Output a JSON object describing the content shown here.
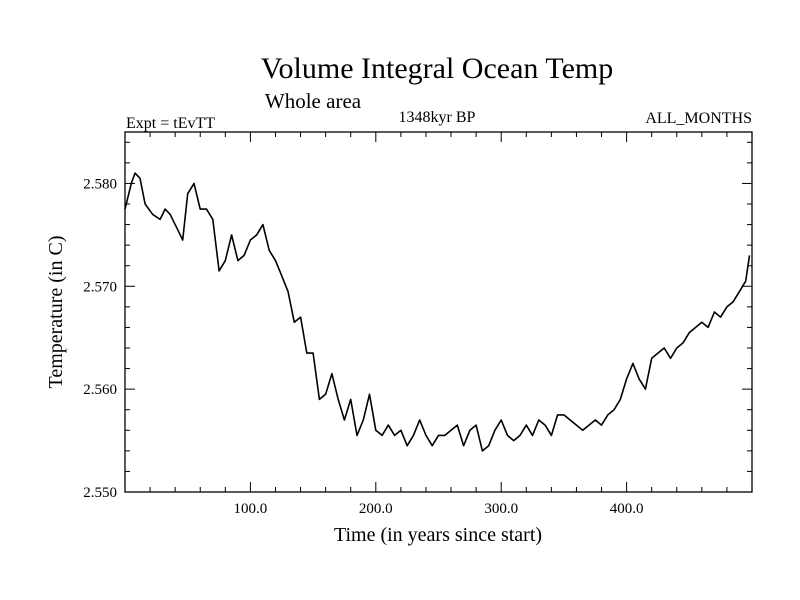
{
  "chart_data": {
    "type": "line",
    "title": "Volume Integral Ocean Temp",
    "subtitle": "Whole area",
    "annotations": {
      "left": "Expt = tEvTT",
      "center": "1348kyr BP",
      "right": "ALL_MONTHS"
    },
    "xlabel": "Time (in years since start)",
    "ylabel": "Temperature (in C)",
    "xlim": [
      0,
      500
    ],
    "ylim": [
      2.55,
      2.585
    ],
    "x_ticks": [
      100,
      200,
      300,
      400
    ],
    "x_tick_labels": [
      "100.0",
      "200.0",
      "300.0",
      "400.0"
    ],
    "y_ticks": [
      2.55,
      2.56,
      2.57,
      2.58
    ],
    "y_tick_labels": [
      "2.550",
      "2.560",
      "2.570",
      "2.580"
    ],
    "x_minor_step": 20,
    "y_minor_step": 0.002,
    "grid": false,
    "series": [
      {
        "name": "Volume Integral Ocean Temp",
        "color": "#000000",
        "x": [
          0,
          5,
          8,
          12,
          16,
          22,
          28,
          32,
          36,
          42,
          46,
          50,
          55,
          60,
          65,
          70,
          75,
          80,
          85,
          90,
          95,
          100,
          105,
          110,
          115,
          120,
          125,
          130,
          135,
          140,
          145,
          150,
          155,
          160,
          165,
          170,
          175,
          180,
          185,
          190,
          195,
          200,
          205,
          210,
          215,
          220,
          225,
          230,
          235,
          240,
          245,
          250,
          255,
          260,
          265,
          270,
          275,
          280,
          285,
          290,
          295,
          300,
          305,
          310,
          315,
          320,
          325,
          330,
          335,
          340,
          345,
          350,
          355,
          360,
          365,
          370,
          375,
          380,
          385,
          390,
          395,
          400,
          405,
          410,
          415,
          420,
          425,
          430,
          435,
          440,
          445,
          450,
          455,
          460,
          465,
          470,
          475,
          480,
          485,
          490,
          495,
          498
        ],
        "y": [
          2.5775,
          2.58,
          2.581,
          2.5805,
          2.578,
          2.577,
          2.5765,
          2.5775,
          2.577,
          2.5755,
          2.5745,
          2.579,
          2.58,
          2.5775,
          2.5775,
          2.5765,
          2.5715,
          2.5725,
          2.575,
          2.5725,
          2.573,
          2.5745,
          2.575,
          2.576,
          2.5735,
          2.5725,
          2.571,
          2.5695,
          2.5665,
          2.567,
          2.5635,
          2.5635,
          2.559,
          2.5595,
          2.5615,
          2.559,
          2.557,
          2.559,
          2.5555,
          2.557,
          2.5595,
          2.556,
          2.5555,
          2.5565,
          2.5555,
          2.556,
          2.5545,
          2.5555,
          2.557,
          2.5555,
          2.5545,
          2.5555,
          2.5555,
          2.556,
          2.5565,
          2.5545,
          2.556,
          2.5565,
          2.554,
          2.5545,
          2.556,
          2.557,
          2.5555,
          2.555,
          2.5555,
          2.5565,
          2.5555,
          2.557,
          2.5565,
          2.5555,
          2.5575,
          2.5575,
          2.557,
          2.5565,
          2.556,
          2.5565,
          2.557,
          2.5565,
          2.5575,
          2.558,
          2.559,
          2.561,
          2.5625,
          2.561,
          2.56,
          2.563,
          2.5635,
          2.564,
          2.563,
          2.564,
          2.5645,
          2.5655,
          2.566,
          2.5665,
          2.566,
          2.5675,
          2.567,
          2.568,
          2.5685,
          2.5695,
          2.5705,
          2.573
        ]
      }
    ]
  }
}
